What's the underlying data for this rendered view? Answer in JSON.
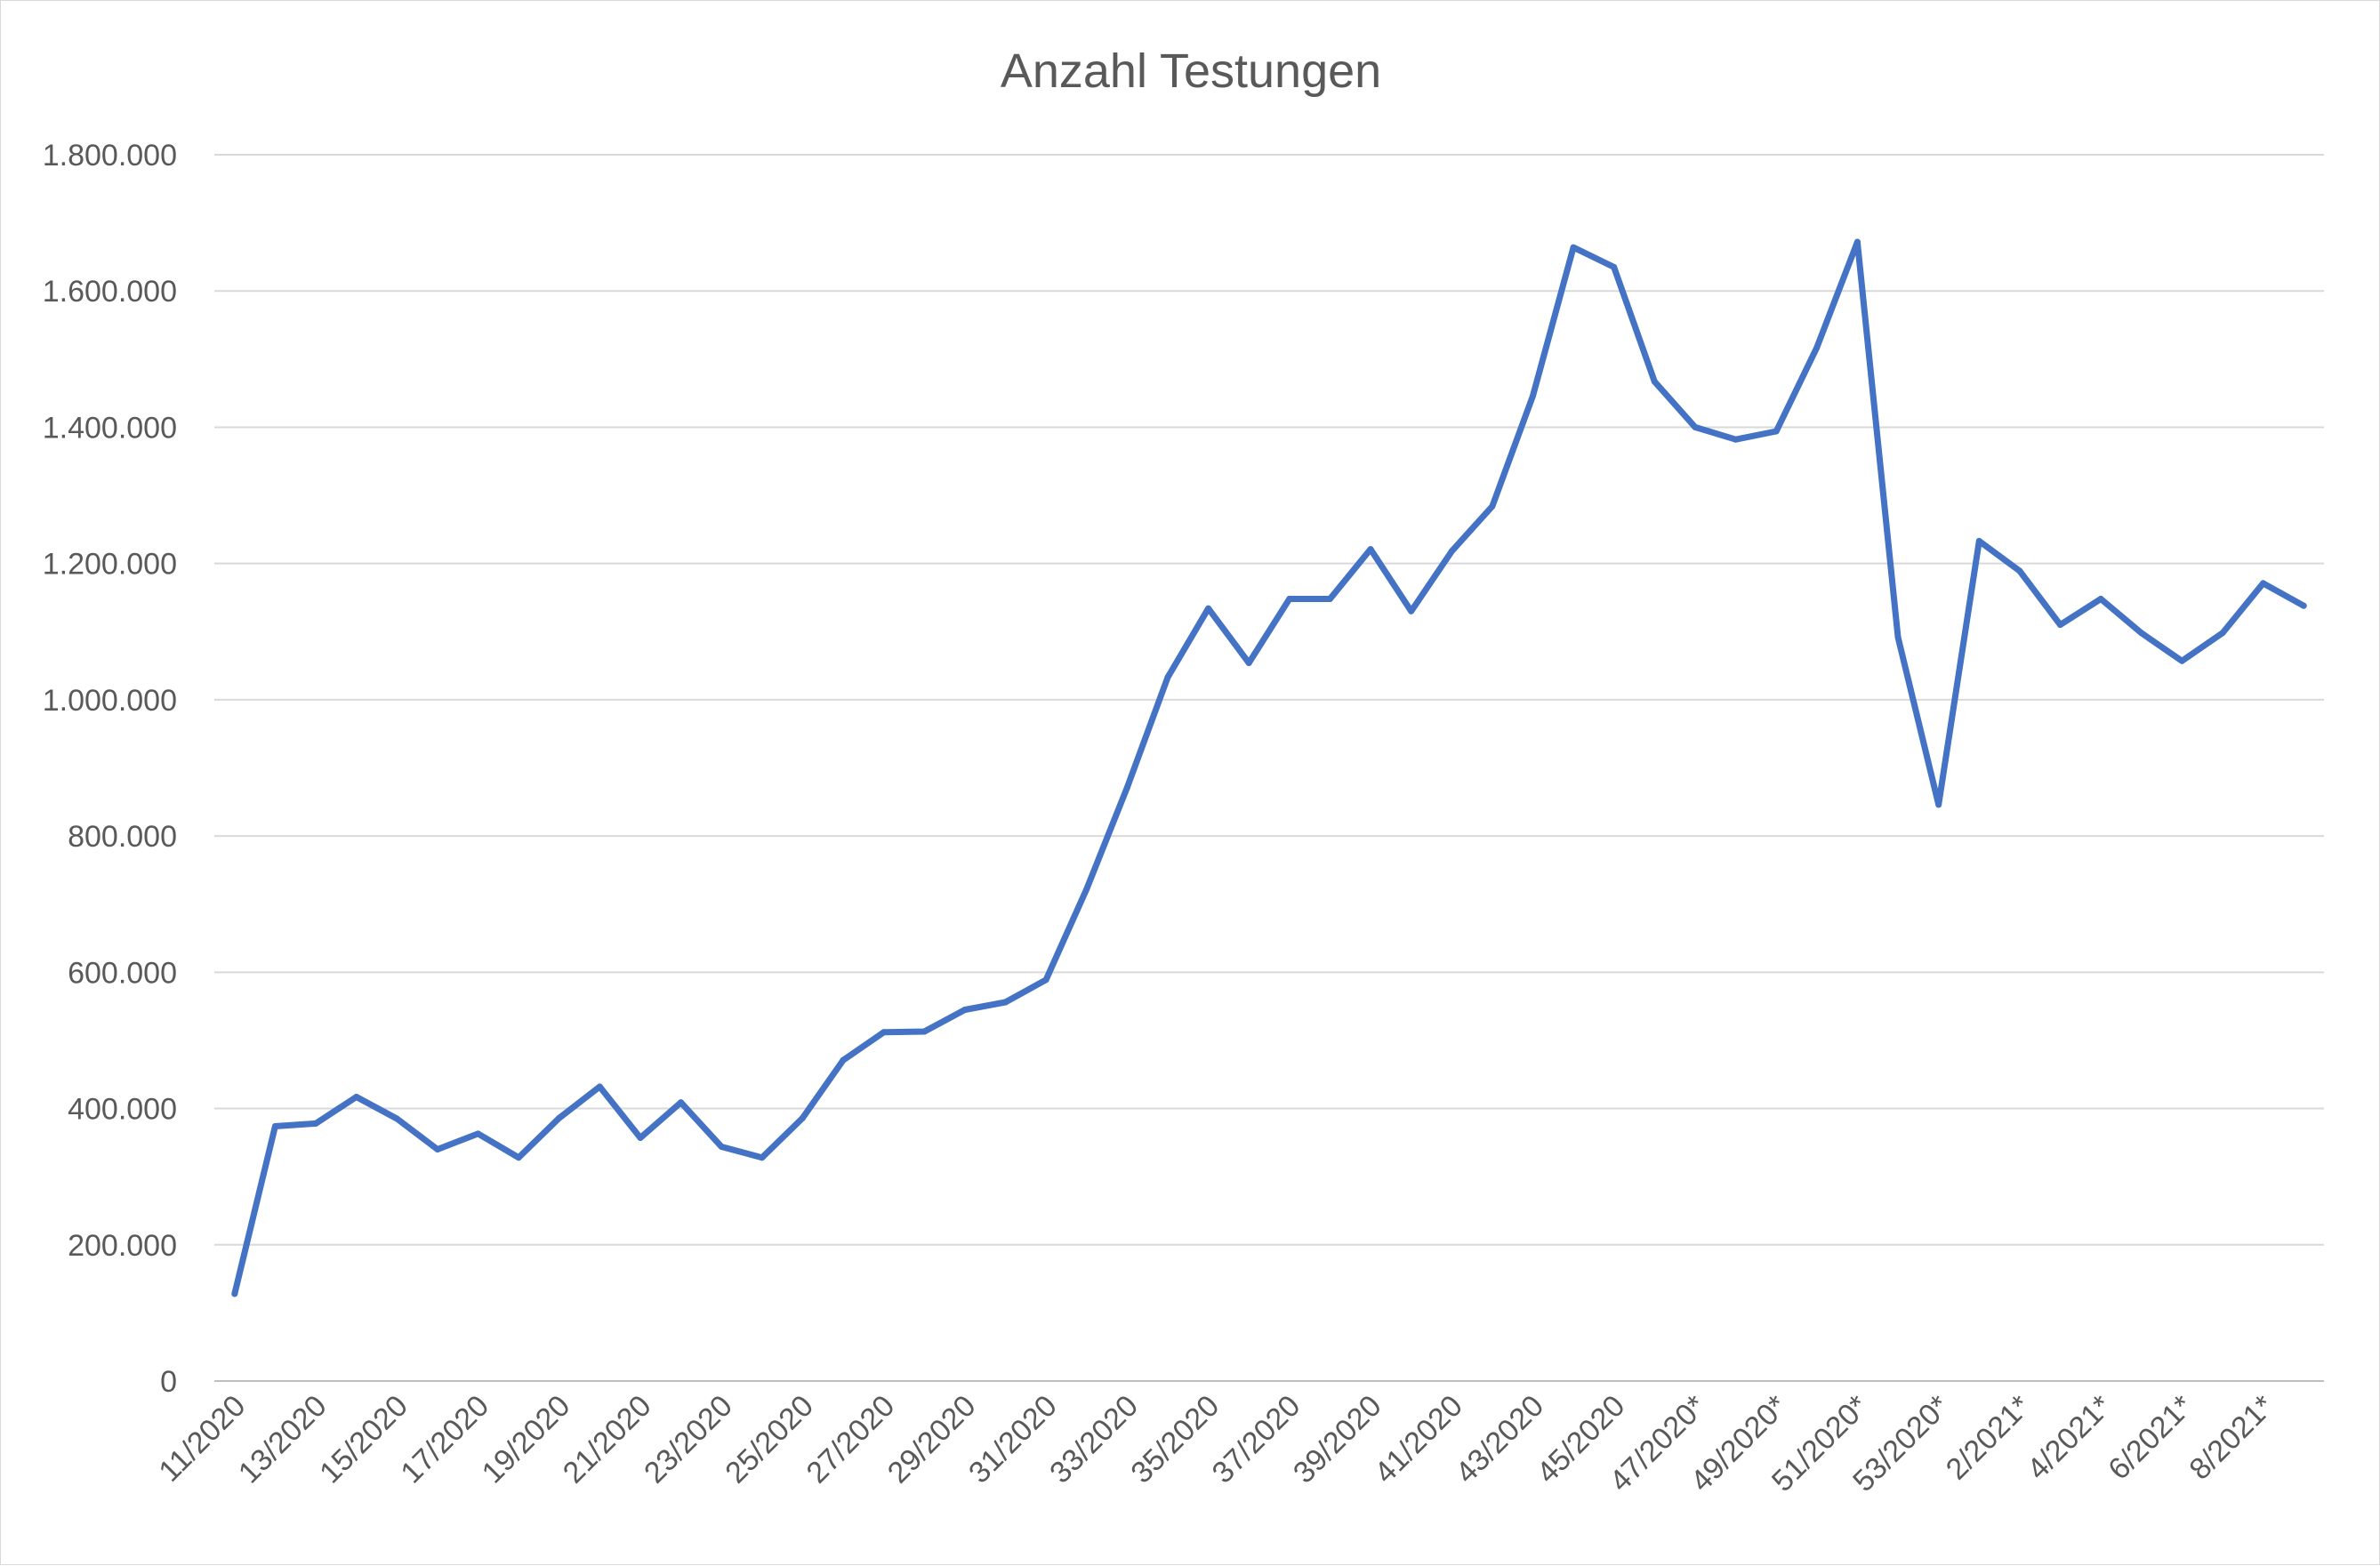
{
  "chart_data": {
    "type": "line",
    "title": "Anzahl Testungen",
    "xlabel": "",
    "ylabel": "",
    "ylim": [
      0,
      1800000
    ],
    "yticks": [
      0,
      200000,
      400000,
      600000,
      800000,
      1000000,
      1200000,
      1400000,
      1600000,
      1800000
    ],
    "ytick_labels": [
      "0",
      "200.000",
      "400.000",
      "600.000",
      "800.000",
      "1.000.000",
      "1.200.000",
      "1.400.000",
      "1.600.000",
      "1.800.000"
    ],
    "grid": true,
    "legend": "none",
    "categories": [
      "11/2020",
      "12/2020",
      "13/2020",
      "14/2020",
      "15/2020",
      "16/2020",
      "17/2020",
      "18/2020",
      "19/2020",
      "20/2020",
      "21/2020",
      "22/2020",
      "23/2020",
      "24/2020",
      "25/2020",
      "26/2020",
      "27/2020",
      "28/2020",
      "29/2020",
      "30/2020",
      "31/2020",
      "32/2020",
      "33/2020",
      "34/2020",
      "35/2020",
      "36/2020",
      "37/2020",
      "38/2020",
      "39/2020",
      "40/2020",
      "41/2020",
      "42/2020",
      "43/2020",
      "44/2020",
      "45/2020",
      "46/2020",
      "47/2020*",
      "48/2020*",
      "49/2020*",
      "50/2020*",
      "51/2020*",
      "52/2020*",
      "53/2020*",
      "1/2021*",
      "2/2021*",
      "3/2021*",
      "4/2021*",
      "5/2021*",
      "6/2021*",
      "7/2021*",
      "8/2021*",
      "9/2021*"
    ],
    "xtick_labels": [
      "11/2020",
      "",
      "13/2020",
      "",
      "15/2020",
      "",
      "17/2020",
      "",
      "19/2020",
      "",
      "21/2020",
      "",
      "23/2020",
      "",
      "25/2020",
      "",
      "27/2020",
      "",
      "29/2020",
      "",
      "31/2020",
      "",
      "33/2020",
      "",
      "35/2020",
      "",
      "37/2020",
      "",
      "39/2020",
      "",
      "41/2020",
      "",
      "43/2020",
      "",
      "45/2020",
      "",
      "47/2020*",
      "",
      "49/2020*",
      "",
      "51/2020*",
      "",
      "53/2020*",
      "",
      "2/2021*",
      "",
      "4/2021*",
      "",
      "6/2021*",
      "",
      "8/2021*",
      ""
    ],
    "series": [
      {
        "color": "#4472c4",
        "values": [
          128000,
          374000,
          378000,
          417000,
          385000,
          340000,
          363000,
          328000,
          386000,
          432000,
          357000,
          409000,
          344000,
          328000,
          386000,
          471000,
          512000,
          513000,
          545000,
          556000,
          589000,
          722000,
          871000,
          1033000,
          1134000,
          1054000,
          1148000,
          1148000,
          1221000,
          1130000,
          1218000,
          1284000,
          1446000,
          1664000,
          1635000,
          1467000,
          1400000,
          1382000,
          1394000,
          1517000,
          1672000,
          1092000,
          846000,
          1233000,
          1189000,
          1110000,
          1148000,
          1098000,
          1057000,
          1098000,
          1171000,
          1138000
        ]
      }
    ]
  }
}
